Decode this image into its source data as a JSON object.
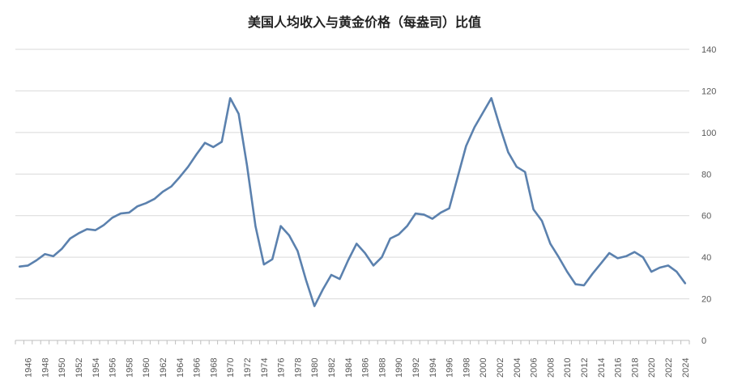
{
  "chart_data": {
    "type": "line",
    "title": "美国人均收入与黄金价格（每盎司）比值",
    "xlabel": "",
    "ylabel": "",
    "ylim": [
      0,
      140
    ],
    "yticks": [
      0,
      20,
      40,
      60,
      80,
      100,
      120,
      140
    ],
    "y_axis_side": "right",
    "grid": true,
    "legend": "none",
    "line_color": "#5B81AE",
    "x_tick_labels": [
      "1946",
      "1948",
      "1950",
      "1952",
      "1954",
      "1956",
      "1958",
      "1960",
      "1962",
      "1964",
      "1966",
      "1968",
      "1970",
      "1972",
      "1974",
      "1976",
      "1978",
      "1980",
      "1982",
      "1984",
      "1986",
      "1988",
      "1990",
      "1992",
      "1994",
      "1996",
      "1998",
      "2000",
      "2002",
      "2004",
      "2006",
      "2008",
      "2010",
      "2012",
      "2014",
      "2016",
      "2018",
      "2020",
      "2022",
      "2024"
    ],
    "series": [
      {
        "x": [
          1945,
          1946,
          1947,
          1948,
          1949,
          1950,
          1951,
          1952,
          1953,
          1954,
          1955,
          1956,
          1957,
          1958,
          1959,
          1960,
          1961,
          1962,
          1963,
          1964,
          1965,
          1966,
          1967,
          1968,
          1969,
          1970,
          1971,
          1972,
          1973,
          1974,
          1975,
          1976,
          1977,
          1978,
          1979,
          1980,
          1981,
          1982,
          1983,
          1984,
          1985,
          1986,
          1987,
          1988,
          1989,
          1990,
          1991,
          1992,
          1993,
          1994,
          1995,
          1996,
          1997,
          1998,
          1999,
          2000,
          2001,
          2002,
          2003,
          2004,
          2005,
          2006,
          2007,
          2008,
          2009,
          2010,
          2011,
          2012,
          2013,
          2014,
          2015,
          2016,
          2017,
          2018,
          2019,
          2020,
          2021,
          2022,
          2023,
          2024
        ],
        "values": [
          35.5,
          36,
          38.5,
          41.5,
          40.5,
          44,
          49,
          51.5,
          53.5,
          53,
          55.5,
          59,
          61,
          61.5,
          64.5,
          66,
          68,
          71.5,
          74,
          78.5,
          83.5,
          89.5,
          95,
          93,
          95.5,
          116.5,
          109,
          84,
          55,
          36.5,
          39,
          55,
          50.5,
          43,
          29,
          16.5,
          24.5,
          31.5,
          29.5,
          38.5,
          46.5,
          42,
          36,
          40,
          49,
          51,
          55,
          61,
          60.5,
          58.5,
          61.5,
          63.5,
          78.5,
          93.5,
          102.5,
          109.5,
          116.5,
          103,
          90.5,
          83.5,
          81,
          63,
          57.5,
          46.5,
          40,
          33,
          27,
          26.5,
          32,
          37,
          42,
          39.5,
          40.5,
          42.5,
          40,
          33,
          35,
          36,
          33,
          27.5
        ]
      }
    ]
  }
}
